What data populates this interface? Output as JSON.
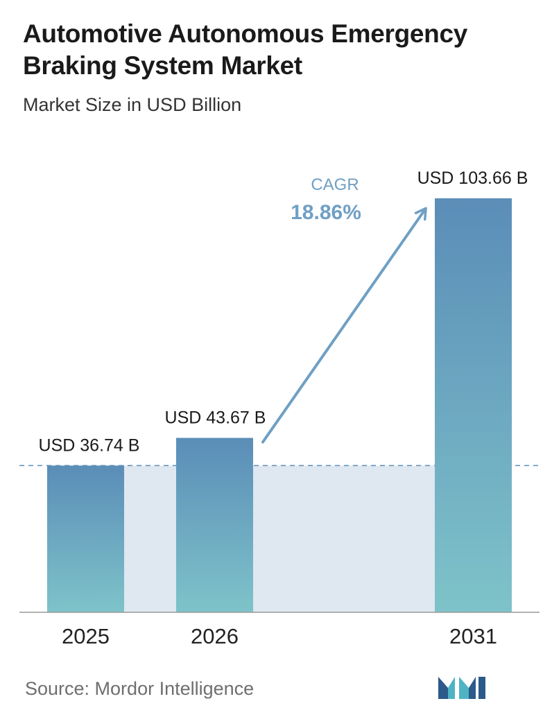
{
  "header": {
    "title": "Automotive Autonomous Emergency Braking System Market",
    "subtitle": "Market Size in USD Billion"
  },
  "footer": {
    "source": "Source: Mordor Intelligence"
  },
  "colors": {
    "bar_top": "#5b8db8",
    "bar_bottom": "#7ec3c9",
    "band": "#dfe7f0",
    "cagr": "#6f9fc4",
    "arrow": "#6f9fc4",
    "dashed_line": "#5b8db8",
    "axis": "#999999",
    "logo_dark": "#2c5a8a",
    "logo_light": "#4fb3c4"
  },
  "chart_data": {
    "type": "bar",
    "title": "Automotive Autonomous Emergency Braking System Market",
    "subtitle": "Market Size in USD Billion",
    "categories": [
      "2025",
      "2026",
      "2031"
    ],
    "values": [
      36.74,
      43.67,
      103.66
    ],
    "data_labels": [
      "USD 36.74 B",
      "USD 43.67 B",
      "USD 103.66 B"
    ],
    "ylim": [
      0,
      103.66
    ],
    "grid": false,
    "reference_line": 36.74,
    "annotation": {
      "label": "CAGR",
      "value": "18.86%",
      "from": "2026",
      "to": "2031"
    }
  }
}
